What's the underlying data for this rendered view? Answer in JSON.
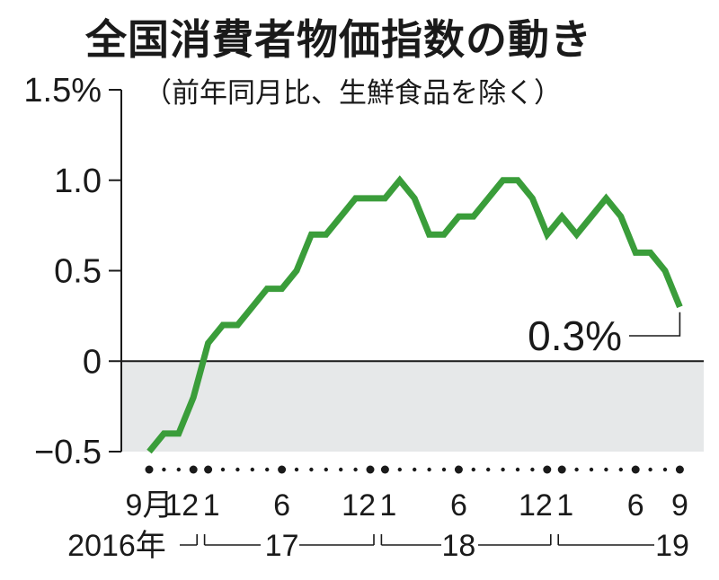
{
  "chart_data": {
    "type": "line",
    "title": "全国消費者物価指数の動き",
    "subtitle": "（前年同月比、生鮮食品を除く）",
    "y_ticks": [
      "1.5%",
      "1.0",
      "0.5",
      "0",
      "−0.5"
    ],
    "ylim": [
      -0.5,
      1.5
    ],
    "grid": false,
    "line_color": "#3a9d3a",
    "negative_band_color": "#e6e8e9",
    "x_tick_labels": [
      {
        "label": "9月",
        "month_index": 0
      },
      {
        "label": "12",
        "month_index": 3
      },
      {
        "label": "1",
        "month_index": 4
      },
      {
        "label": "6",
        "month_index": 9
      },
      {
        "label": "12",
        "month_index": 15
      },
      {
        "label": "1",
        "month_index": 16
      },
      {
        "label": "6",
        "month_index": 21
      },
      {
        "label": "12",
        "month_index": 27
      },
      {
        "label": "1",
        "month_index": 28
      },
      {
        "label": "6",
        "month_index": 33
      },
      {
        "label": "9",
        "month_index": 36
      }
    ],
    "year_labels": [
      "2016年",
      "17",
      "18",
      "19"
    ],
    "series": [
      {
        "x": [
          "2016-09",
          "2016-10",
          "2016-11",
          "2016-12",
          "2017-01",
          "2017-02",
          "2017-03",
          "2017-04",
          "2017-05",
          "2017-06",
          "2017-07",
          "2017-08",
          "2017-09",
          "2017-10",
          "2017-11",
          "2017-12",
          "2018-01",
          "2018-02",
          "2018-03",
          "2018-04",
          "2018-05",
          "2018-06",
          "2018-07",
          "2018-08",
          "2018-09",
          "2018-10",
          "2018-11",
          "2018-12",
          "2019-01",
          "2019-02",
          "2019-03",
          "2019-04",
          "2019-05",
          "2019-06",
          "2019-07",
          "2019-08",
          "2019-09"
        ],
        "values": [
          -0.5,
          -0.4,
          -0.4,
          -0.2,
          0.1,
          0.2,
          0.2,
          0.3,
          0.4,
          0.4,
          0.5,
          0.7,
          0.7,
          0.8,
          0.9,
          0.9,
          0.9,
          1.0,
          0.9,
          0.7,
          0.7,
          0.8,
          0.8,
          0.9,
          1.0,
          1.0,
          0.9,
          0.7,
          0.8,
          0.7,
          0.8,
          0.9,
          0.8,
          0.6,
          0.6,
          0.5,
          0.3
        ]
      }
    ],
    "annotation": "0.3%"
  }
}
